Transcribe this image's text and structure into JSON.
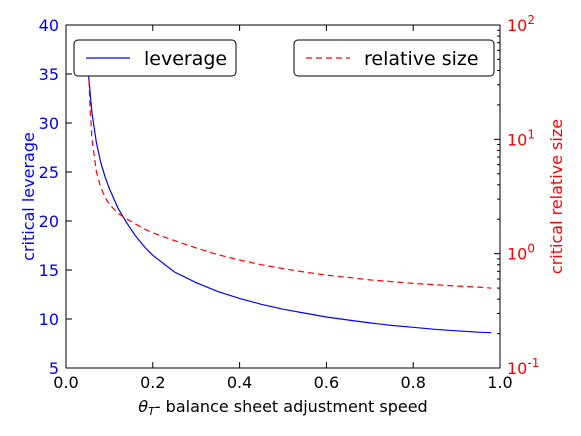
{
  "chart_data": {
    "type": "line",
    "xlabel": "θT- balance sheet adjustment speed",
    "xlabel_parts": {
      "theta": "θ",
      "sub": "T",
      "rest": "- balance sheet adjustment speed"
    },
    "ylabel_left": "critical leverage",
    "ylabel_right": "critical relative size",
    "xlim": [
      0.0,
      1.0
    ],
    "ylim_left": [
      5,
      40
    ],
    "ylim_right_log10": [
      -1,
      2
    ],
    "x_ticks": [
      "0.0",
      "0.2",
      "0.4",
      "0.6",
      "0.8",
      "1.0"
    ],
    "y_left_ticks": [
      "5",
      "10",
      "15",
      "20",
      "25",
      "30",
      "35",
      "40"
    ],
    "y_right_ticks": [
      {
        "base": "10",
        "exp": "-1"
      },
      {
        "base": "10",
        "exp": "0"
      },
      {
        "base": "10",
        "exp": "1"
      },
      {
        "base": "10",
        "exp": "2"
      }
    ],
    "grid": false,
    "colors": {
      "left_axis": "#0000ff",
      "right_axis": "#ff0000"
    },
    "series": [
      {
        "name": "leverage",
        "axis": "left",
        "color": "#0000ff",
        "style": "solid",
        "x": [
          0.05,
          0.06,
          0.07,
          0.08,
          0.09,
          0.1,
          0.12,
          0.14,
          0.16,
          0.18,
          0.2,
          0.25,
          0.3,
          0.35,
          0.4,
          0.45,
          0.5,
          0.55,
          0.6,
          0.65,
          0.7,
          0.75,
          0.8,
          0.85,
          0.9,
          0.95,
          0.98
        ],
        "y": [
          35.8,
          31.0,
          28.0,
          26.0,
          24.5,
          23.3,
          21.3,
          19.8,
          18.5,
          17.4,
          16.5,
          14.8,
          13.7,
          12.8,
          12.1,
          11.5,
          11.0,
          10.6,
          10.2,
          9.9,
          9.6,
          9.35,
          9.15,
          8.95,
          8.8,
          8.65,
          8.6
        ]
      },
      {
        "name": "relative size",
        "axis": "right",
        "color": "#ff0000",
        "style": "dashed",
        "x": [
          0.05,
          0.055,
          0.06,
          0.07,
          0.08,
          0.09,
          0.1,
          0.12,
          0.14,
          0.16,
          0.18,
          0.2,
          0.25,
          0.3,
          0.35,
          0.4,
          0.45,
          0.5,
          0.55,
          0.6,
          0.65,
          0.7,
          0.75,
          0.8,
          0.85,
          0.9,
          0.95,
          0.98
        ],
        "y": [
          60,
          20,
          10,
          5.2,
          3.8,
          3.1,
          2.7,
          2.25,
          2.0,
          1.82,
          1.65,
          1.52,
          1.3,
          1.12,
          0.98,
          0.88,
          0.8,
          0.74,
          0.69,
          0.65,
          0.62,
          0.59,
          0.57,
          0.55,
          0.535,
          0.52,
          0.51,
          0.5
        ]
      }
    ],
    "legends": [
      {
        "series": "leverage",
        "label": "leverage",
        "placement": "upper-left"
      },
      {
        "series": "relative size",
        "label": "relative size",
        "placement": "upper-right"
      }
    ]
  }
}
